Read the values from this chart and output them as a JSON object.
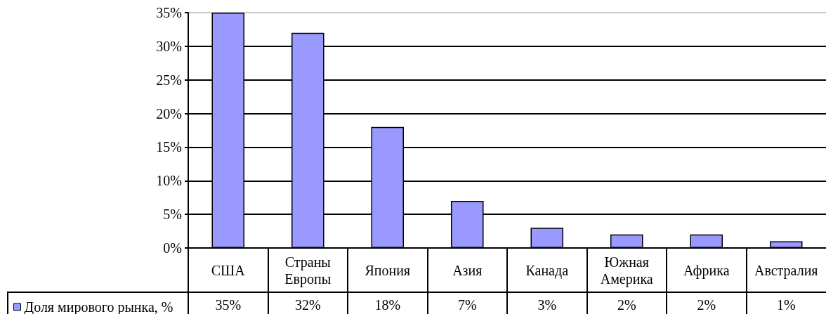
{
  "chart_data": {
    "type": "bar",
    "categories": [
      "США",
      "Страны Европы",
      "Япония",
      "Азия",
      "Канада",
      "Южная Америка",
      "Африка",
      "Австралия"
    ],
    "series": [
      {
        "name": "Доля мирового рынка, %",
        "color": "#9999ff",
        "values": [
          35,
          32,
          18,
          7,
          3,
          2,
          2,
          1
        ],
        "value_labels": [
          "35%",
          "32%",
          "18%",
          "7%",
          "3%",
          "2%",
          "2%",
          "1%"
        ]
      }
    ],
    "ylim": [
      0,
      35
    ],
    "yticks": [
      {
        "value": 0,
        "label": "0%"
      },
      {
        "value": 5,
        "label": "5%"
      },
      {
        "value": 10,
        "label": "10%"
      },
      {
        "value": 15,
        "label": "15%"
      },
      {
        "value": 20,
        "label": "20%"
      },
      {
        "value": 25,
        "label": "25%"
      },
      {
        "value": 30,
        "label": "30%"
      },
      {
        "value": 35,
        "label": "35%"
      }
    ],
    "grid": "y",
    "legend": "bottom left"
  }
}
